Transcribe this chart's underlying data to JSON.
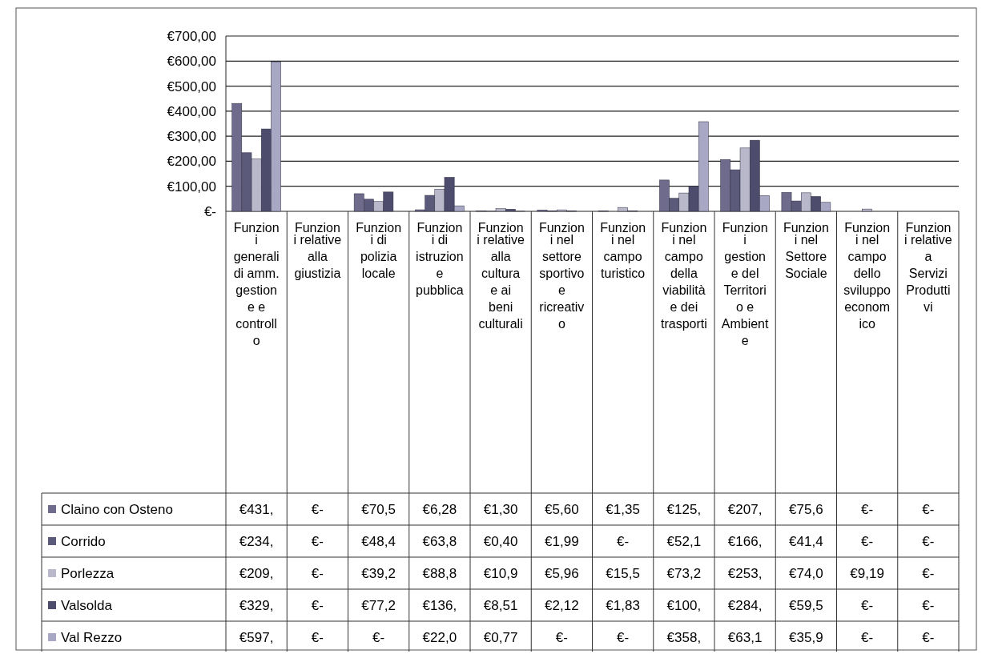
{
  "chart_data": {
    "type": "bar",
    "categories": [
      "Funzioni generali di amm. gestione e controllo",
      "Funzioni relative alla giustizia",
      "Funzioni di polizia locale",
      "Funzioni di istruzione pubblica",
      "Funzioni relative alla cultura e ai beni culturali",
      "Funzioni nel settore sportivo e ricreativo",
      "Funzioni nel campo turistico",
      "Funzioni nel campo della viabilità e dei trasporti",
      "Funzioni gestione del Territorio e Ambiente",
      "Funzioni nel Settore Sociale",
      "Funzioni nel campo dello sviluppo economico",
      "Funzioni relative a Servizi Produttivi"
    ],
    "series": [
      {
        "name": "Claino con Osteno",
        "color": "#6e6b8c",
        "values": [
          431,
          0,
          70.5,
          6.28,
          1.3,
          5.6,
          1.35,
          125,
          207,
          75.6,
          0,
          0
        ],
        "value_labels": [
          "€431,",
          "€-",
          "€70,5",
          "€6,28",
          "€1,30",
          "€5,60",
          "€1,35",
          "€125,",
          "€207,",
          "€75,6",
          "€-",
          "€-"
        ]
      },
      {
        "name": "Corrido",
        "color": "#5c5a7a",
        "values": [
          234,
          0,
          48.4,
          63.8,
          0.4,
          1.99,
          0,
          52.1,
          166,
          41.4,
          0,
          0
        ],
        "value_labels": [
          "€234,",
          "€-",
          "€48,4",
          "€63,8",
          "€0,40",
          "€1,99",
          "€-",
          "€52,1",
          "€166,",
          "€41,4",
          "€-",
          "€-"
        ]
      },
      {
        "name": "Porlezza",
        "color": "#b9b8ca",
        "values": [
          209,
          0,
          39.2,
          88.8,
          10.9,
          5.96,
          15.5,
          73.2,
          253,
          74.0,
          9.19,
          0
        ],
        "value_labels": [
          "€209,",
          "€-",
          "€39,2",
          "€88,8",
          "€10,9",
          "€5,96",
          "€15,5",
          "€73,2",
          "€253,",
          "€74,0",
          "€9,19",
          "€-"
        ]
      },
      {
        "name": "Valsolda",
        "color": "#4e4c6c",
        "values": [
          329,
          0,
          77.2,
          136,
          8.51,
          2.12,
          1.83,
          100,
          284,
          59.5,
          0,
          0
        ],
        "value_labels": [
          "€329,",
          "€-",
          "€77,2",
          "€136,",
          "€8,51",
          "€2,12",
          "€1,83",
          "€100,",
          "€284,",
          "€59,5",
          "€-",
          "€-"
        ]
      },
      {
        "name": "Val Rezzo",
        "color": "#a8a7c4",
        "values": [
          597,
          0,
          0,
          22.0,
          0.77,
          0,
          0,
          358,
          63.1,
          35.9,
          0,
          0
        ],
        "value_labels": [
          "€597,",
          "€-",
          "€-",
          "€22,0",
          "€0,77",
          "€-",
          "€-",
          "€358,",
          "€63,1",
          "€35,9",
          "€-",
          "€-"
        ]
      }
    ],
    "ylim": [
      0,
      700
    ],
    "yticks": [
      {
        "value": 0,
        "label": "€-"
      },
      {
        "value": 100,
        "label": "€100,00"
      },
      {
        "value": 200,
        "label": "€200,00"
      },
      {
        "value": 300,
        "label": "€300,00"
      },
      {
        "value": 400,
        "label": "€400,00"
      },
      {
        "value": 500,
        "label": "€500,00"
      },
      {
        "value": 600,
        "label": "€600,00"
      },
      {
        "value": 700,
        "label": "€700,00"
      }
    ],
    "grid": "y",
    "legend": "bottom"
  }
}
